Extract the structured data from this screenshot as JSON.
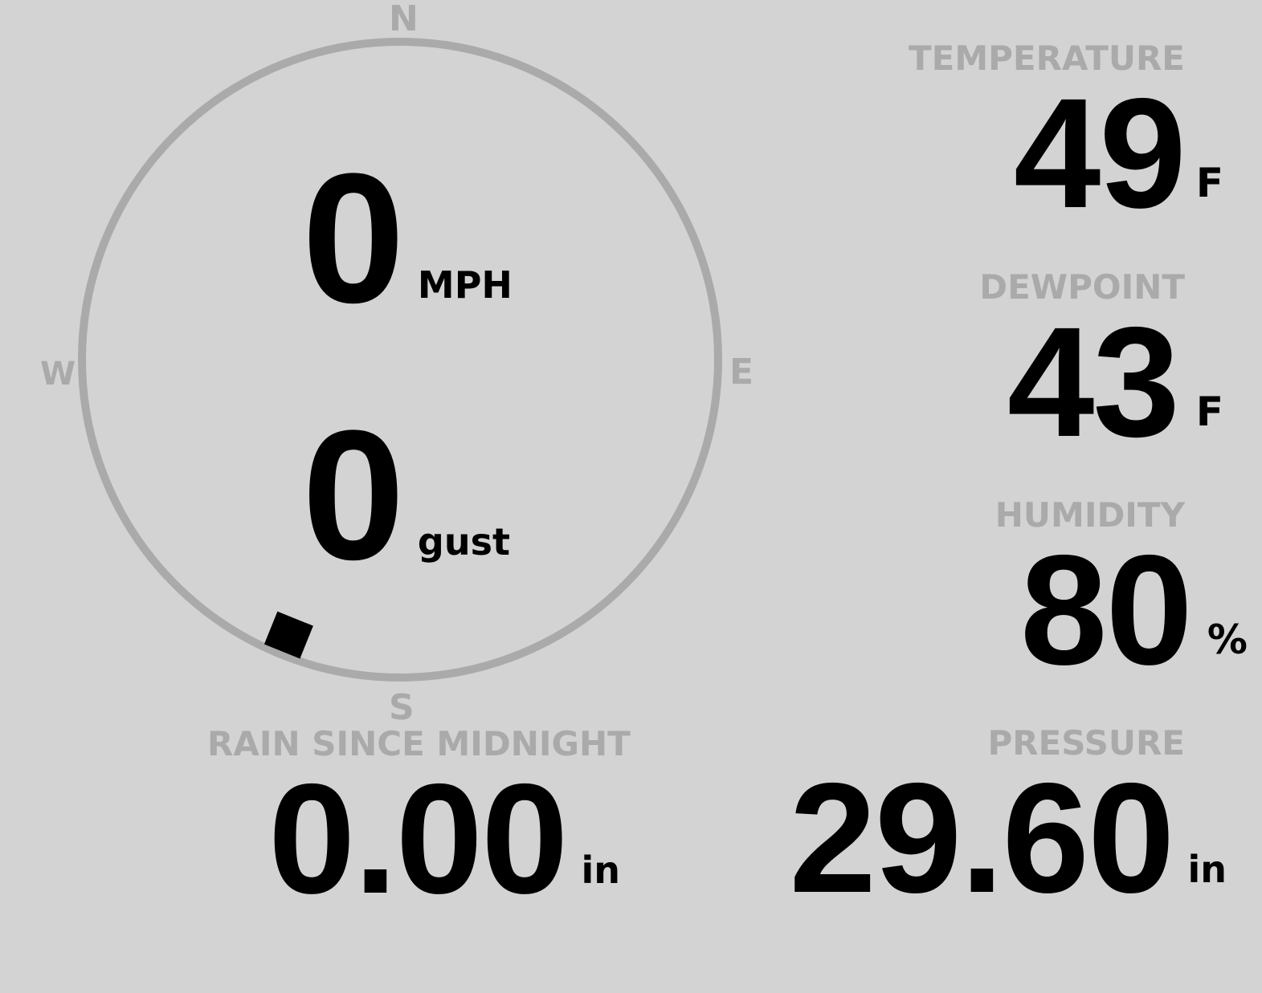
{
  "wind": {
    "speed": "0",
    "speed_unit": "MPH",
    "gust": "0",
    "gust_unit": "gust",
    "direction_deg": 202,
    "compass": {
      "n": "N",
      "e": "E",
      "s": "S",
      "w": "W"
    }
  },
  "temperature": {
    "label": "TEMPERATURE",
    "value": "49",
    "unit": "F"
  },
  "dewpoint": {
    "label": "DEWPOINT",
    "value": "43",
    "unit": "F"
  },
  "humidity": {
    "label": "HUMIDITY",
    "value": "80",
    "unit": "%"
  },
  "rain": {
    "label": "RAIN SINCE MIDNIGHT",
    "value": "0.00",
    "unit": "in"
  },
  "pressure": {
    "label": "PRESSURE",
    "value": "29.60",
    "unit": "in"
  },
  "colors": {
    "background": "#d3d3d3",
    "label": "#aaaaaa",
    "value": "#000000",
    "ring": "#aaaaaa"
  }
}
